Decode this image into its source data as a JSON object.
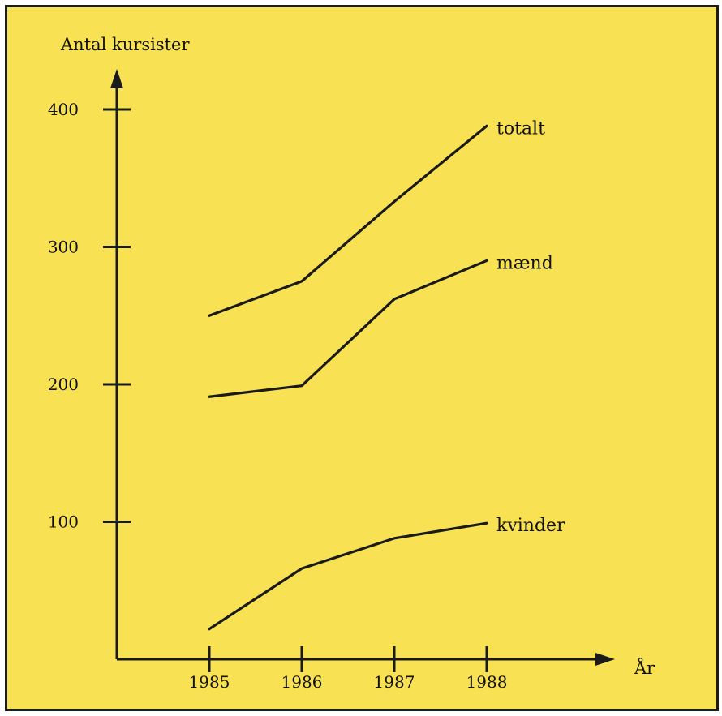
{
  "chart_data": {
    "type": "line",
    "title": "",
    "ylabel": "Antal kursister",
    "xlabel": "År",
    "x": [
      1985,
      1986,
      1987,
      1988
    ],
    "x_tick_labels": [
      "1985",
      "1986",
      "1987",
      "1988"
    ],
    "y_ticks": [
      100,
      200,
      300,
      400
    ],
    "y_tick_labels": [
      "100",
      "200",
      "300",
      "400"
    ],
    "ylim": [
      0,
      430
    ],
    "xlim": [
      1984,
      1989.3
    ],
    "grid": false,
    "legend": "none",
    "line_color": "#1a1a1a",
    "background_color": "#f8e152",
    "series": [
      {
        "name": "totalt",
        "values": [
          250,
          275,
          333,
          388
        ]
      },
      {
        "name": "mænd",
        "values": [
          191,
          199,
          262,
          290
        ]
      },
      {
        "name": "kvinder",
        "values": [
          22,
          66,
          88,
          99
        ]
      }
    ]
  }
}
